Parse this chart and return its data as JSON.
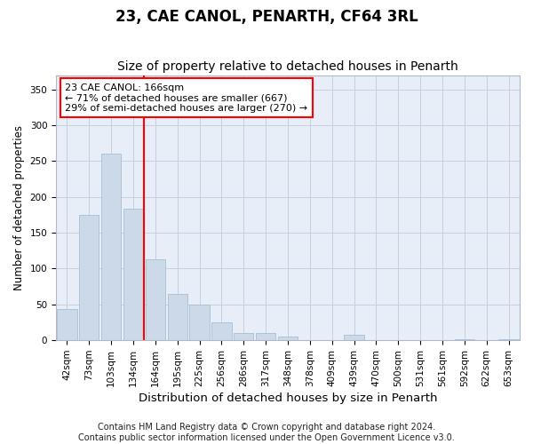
{
  "title": "23, CAE CANOL, PENARTH, CF64 3RL",
  "subtitle": "Size of property relative to detached houses in Penarth",
  "xlabel": "Distribution of detached houses by size in Penarth",
  "ylabel": "Number of detached properties",
  "categories": [
    "42sqm",
    "73sqm",
    "103sqm",
    "134sqm",
    "164sqm",
    "195sqm",
    "225sqm",
    "256sqm",
    "286sqm",
    "317sqm",
    "348sqm",
    "378sqm",
    "409sqm",
    "439sqm",
    "470sqm",
    "500sqm",
    "531sqm",
    "561sqm",
    "592sqm",
    "622sqm",
    "653sqm"
  ],
  "values": [
    44,
    175,
    260,
    184,
    113,
    65,
    50,
    25,
    10,
    10,
    5,
    0,
    0,
    8,
    0,
    0,
    0,
    0,
    2,
    0,
    2
  ],
  "bar_color": "#ccd9e8",
  "bar_edge_color": "#a8bfd4",
  "annotation_text_line1": "23 CAE CANOL: 166sqm",
  "annotation_text_line2": "← 71% of detached houses are smaller (667)",
  "annotation_text_line3": "29% of semi-detached houses are larger (270) →",
  "annotation_box_facecolor": "white",
  "annotation_box_edgecolor": "red",
  "vline_color": "red",
  "vline_x": 3.5,
  "ylim": [
    0,
    370
  ],
  "yticks": [
    0,
    50,
    100,
    150,
    200,
    250,
    300,
    350
  ],
  "bg_color": "#ffffff",
  "plot_bg_color": "#e8eef8",
  "grid_color": "#c8d0e0",
  "title_fontsize": 12,
  "subtitle_fontsize": 10,
  "xlabel_fontsize": 9.5,
  "ylabel_fontsize": 8.5,
  "tick_fontsize": 7.5,
  "annotation_fontsize": 8,
  "footer_fontsize": 7,
  "footer_line1": "Contains HM Land Registry data © Crown copyright and database right 2024.",
  "footer_line2": "Contains public sector information licensed under the Open Government Licence v3.0."
}
